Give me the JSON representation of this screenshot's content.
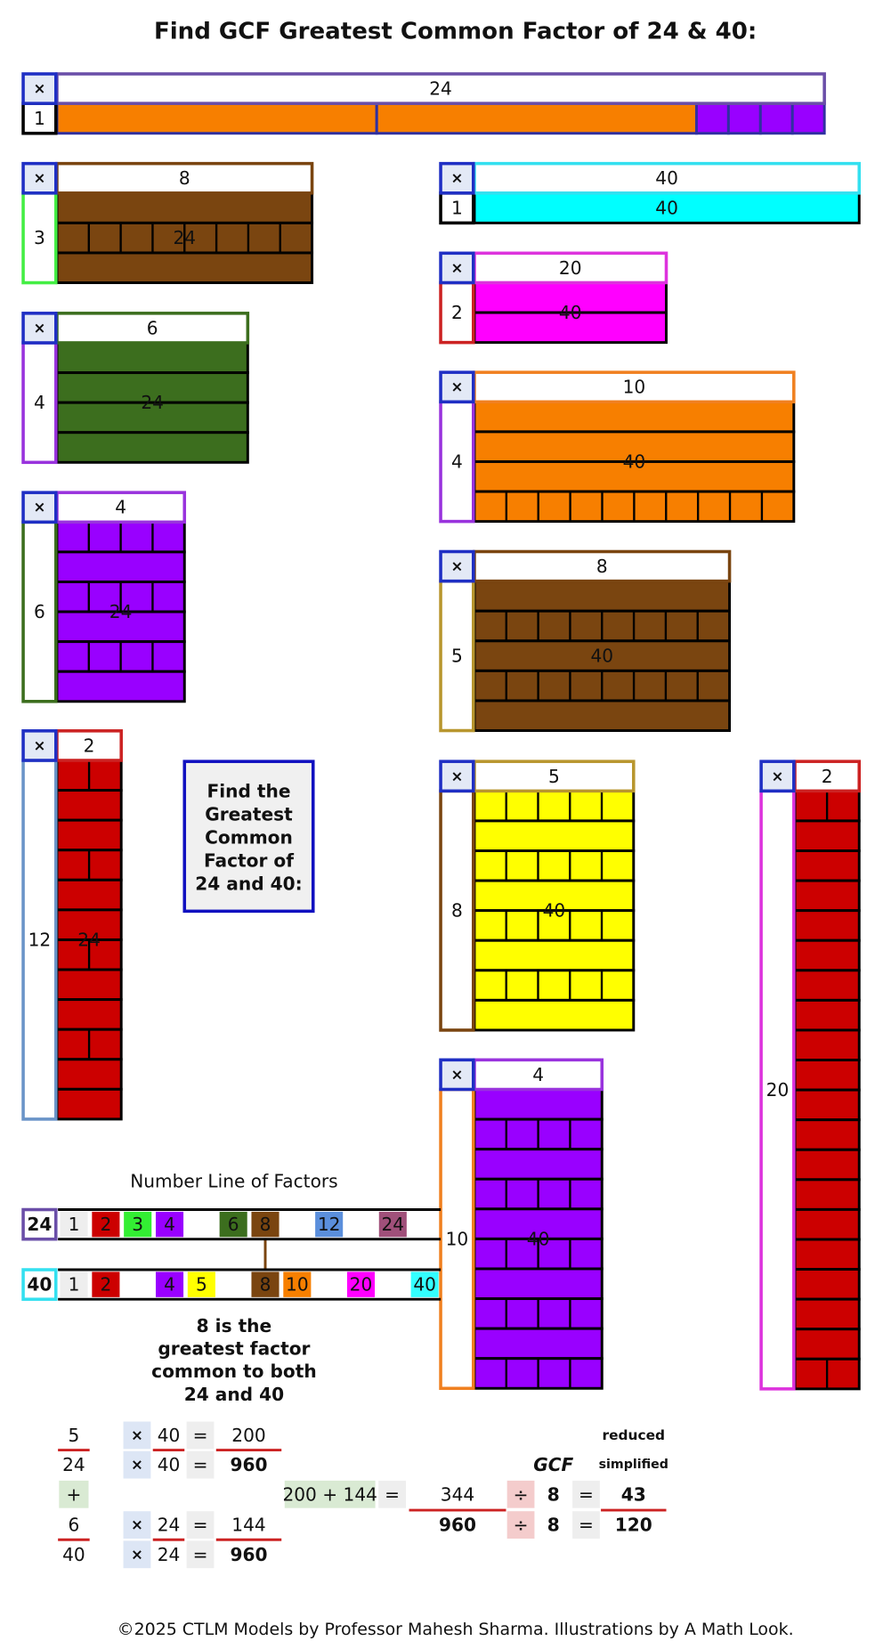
{
  "title": "Find GCF Greatest Common Factor of 24 & 40:",
  "times": "×",
  "boxes": [
    {
      "header": 24,
      "side": 1,
      "colors": [
        "#f77f00",
        "#9900ff"
      ],
      "header_border": "#6a4ea8",
      "side_border": "#000000"
    },
    {
      "header": 8,
      "side": 3,
      "product": 24,
      "colors": [
        "#7a4510"
      ],
      "label_color": "#ffffff",
      "header_border": "#7a4510",
      "side_border": "#44ee44"
    },
    {
      "header": 6,
      "side": 4,
      "product": 24,
      "colors": [
        "#3c6e1e"
      ],
      "label_color": "#ffffff",
      "header_border": "#3c6e1e",
      "side_border": "#9933dd"
    },
    {
      "header": 4,
      "side": 6,
      "product": 24,
      "colors": [
        "#9900ff"
      ],
      "label_color": "#ffffff",
      "header_border": "#9933dd",
      "side_border": "#3c6e1e"
    },
    {
      "header": 2,
      "side": 12,
      "product": 24,
      "colors": [
        "#cc0000"
      ],
      "label_color": "#ffffff",
      "header_border": "#cc2222",
      "side_border": "#6a94c8"
    },
    {
      "header": 40,
      "side": 1,
      "product": 40,
      "colors": [
        "#00ffff"
      ],
      "label_color": "#333333",
      "header_border": "#33e0f0",
      "side_border": "#000000"
    },
    {
      "header": 20,
      "side": 2,
      "product": 40,
      "colors": [
        "#ff00ff"
      ],
      "label_color": "#5a1a5a",
      "header_border": "#dd33dd",
      "side_border": "#cc2222"
    },
    {
      "header": 10,
      "side": 4,
      "product": 40,
      "colors": [
        "#f77f00"
      ],
      "label_color": "#333333",
      "header_border": "#f08020",
      "side_border": "#9933dd"
    },
    {
      "header": 8,
      "side": 5,
      "product": 40,
      "colors": [
        "#7a4510"
      ],
      "label_color": "#ffffff",
      "header_border": "#7a4510",
      "side_border": "#b8962e"
    },
    {
      "header": 5,
      "side": 8,
      "product": 40,
      "colors": [
        "#ffff00"
      ],
      "label_color": "#333333",
      "header_border": "#b8962e",
      "side_border": "#7a4510"
    },
    {
      "header": 4,
      "side": 10,
      "product": 40,
      "colors": [
        "#9900ff"
      ],
      "label_color": "#ffffff",
      "header_border": "#9933dd",
      "side_border": "#f08020"
    },
    {
      "header": 2,
      "side": 20,
      "colors": [
        "#cc0000"
      ],
      "label_color": "#ffffff",
      "header_border": "#cc2222",
      "side_border": "#dd33dd"
    }
  ],
  "find_box": [
    "Find the",
    "Greatest",
    "Common",
    "Factor of",
    "24 and 40:"
  ],
  "number_line": {
    "title": "Number Line of Factors",
    "connector_color": "#7a4510",
    "rows": [
      {
        "label": 24,
        "border": "#6a4ea8",
        "cells": [
          1,
          2,
          3,
          4,
          null,
          6,
          8,
          null,
          12,
          null,
          24,
          null
        ],
        "colors": [
          "#eeeeee",
          "#cc0000",
          "#33ee33",
          "#9900ff",
          null,
          "#3c6e1e",
          "#7a4510",
          null,
          "#5b8fdc",
          null,
          "#a0507a",
          null
        ]
      },
      {
        "label": 40,
        "border": "#33e0f0",
        "cells": [
          1,
          2,
          null,
          4,
          5,
          null,
          8,
          10,
          null,
          20,
          null,
          40
        ],
        "colors": [
          "#eeeeee",
          "#cc0000",
          null,
          "#9900ff",
          "#ffff00",
          null,
          "#7a4510",
          "#f77f00",
          null,
          "#ff00ff",
          null,
          "#33ffff"
        ]
      }
    ]
  },
  "conclusion": [
    "8 is the",
    "greatest factor",
    "common to both",
    "24 and 40"
  ],
  "calculation": {
    "fractions": [
      {
        "numerator": 5,
        "denominator": 24,
        "multiplier": 40,
        "product_numerator": 200,
        "product_denominator": 960
      },
      {
        "numerator": 6,
        "denominator": 40,
        "multiplier": 24,
        "product_numerator": 144,
        "product_denominator": 960
      }
    ],
    "plus": "+",
    "sum": "200 + 144",
    "sum_numerator": 344,
    "sum_denominator": 960,
    "gcf_label": "GCF",
    "gcf": 8,
    "reduced_label": "reduced",
    "simplified_label": "simplified",
    "result_numerator": 43,
    "result_denominator": 120,
    "equals": "=",
    "divide": "÷"
  },
  "footer": "©2025 CTLM Models by Professor Mahesh Sharma. Illustrations by A Math Look."
}
